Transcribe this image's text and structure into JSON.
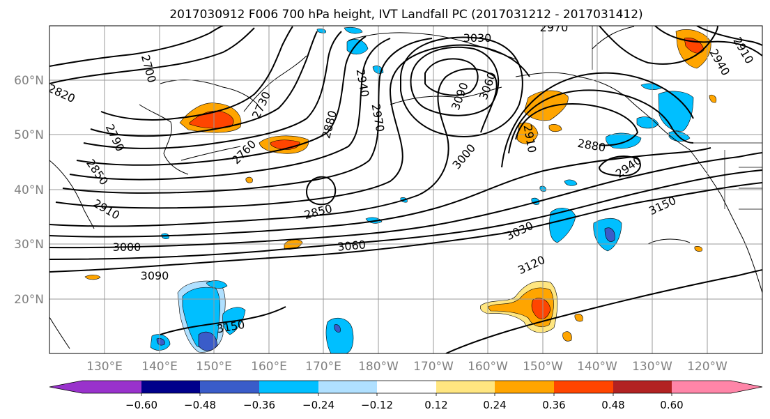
{
  "title": "2017030912 F006 700 hPa height, IVT Landfall PC (2017031212 - 2017031412)",
  "map": {
    "lat_ticks": [
      "20°N",
      "30°N",
      "40°N",
      "50°N",
      "60°N"
    ],
    "lon_ticks": [
      "130°E",
      "140°E",
      "150°E",
      "160°E",
      "170°E",
      "180°W",
      "170°W",
      "160°W",
      "150°W",
      "140°W",
      "130°W",
      "120°W"
    ],
    "height_contour_labels": [
      "2700",
      "2820",
      "2790",
      "2850",
      "2910",
      "3000",
      "3090",
      "3150",
      "2730",
      "2760",
      "2880",
      "2940",
      "2970",
      "3030",
      "3090",
      "3060",
      "3000",
      "2850",
      "3060",
      "3030",
      "3120",
      "2910",
      "2880",
      "2940",
      "3150",
      "2970",
      "2940",
      "2910"
    ]
  },
  "colorbar": {
    "ticks": [
      "−0.60",
      "−0.48",
      "−0.36",
      "−0.24",
      "−0.12",
      "0.12",
      "0.24",
      "0.36",
      "0.48",
      "0.60"
    ],
    "colors": [
      "#9932CC",
      "#00008B",
      "#3A5CC9",
      "#00BFFF",
      "#B0E0FF",
      "#FFFFFF",
      "#FFE680",
      "#FFA500",
      "#FF4500",
      "#B22222",
      "#FF85A8"
    ]
  }
}
